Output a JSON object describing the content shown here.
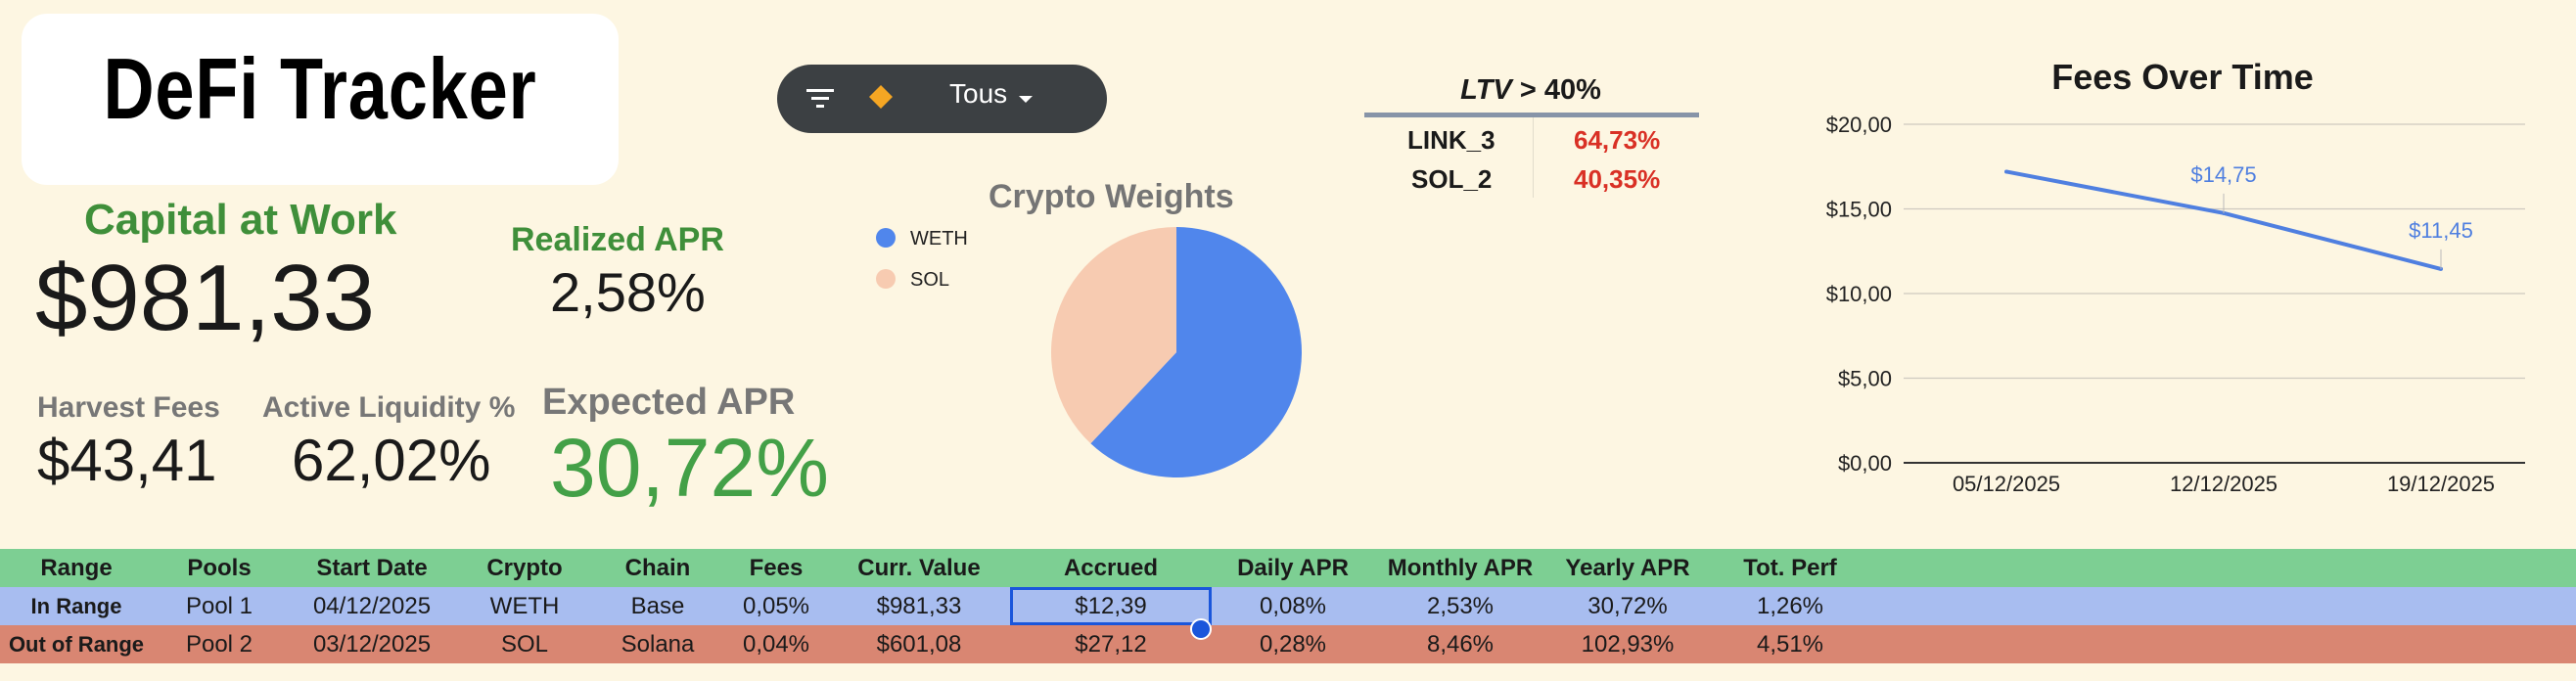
{
  "logo": {
    "text": "DeFi Tracker"
  },
  "kpis": {
    "capital_label": "Capital at Work",
    "capital_value": "$981,33",
    "realized_apr_label": "Realized APR",
    "realized_apr_value": "2,58%",
    "harvest_label": "Harvest Fees",
    "harvest_value": "$43,41",
    "active_liq_label": "Active Liquidity %",
    "active_liq_value": "62,02%",
    "expected_apr_label": "Expected APR",
    "expected_apr_value": "30,72%"
  },
  "toolbar": {
    "filter_icon": "filter-icon",
    "diamond_icon": "diamond-icon",
    "select_value": "Tous"
  },
  "ltv": {
    "header_italic": "LTV",
    "header_rest": " > 40%",
    "rows": [
      {
        "name": "LINK_3",
        "value": "64,73%"
      },
      {
        "name": "SOL_2",
        "value": "40,35%"
      }
    ],
    "value_color": "#d93025"
  },
  "chart_data": [
    {
      "type": "pie",
      "title": "Crypto Weights",
      "labels": [
        "WETH",
        "SOL"
      ],
      "values": [
        62,
        38
      ],
      "colors": [
        "#5086ec",
        "#f7cbb1"
      ],
      "legend": "left"
    },
    {
      "type": "line",
      "title": "Fees Over Time",
      "x": [
        "05/12/2025",
        "12/12/2025",
        "19/12/2025"
      ],
      "series": [
        {
          "values": [
            17.2,
            14.75,
            11.45
          ],
          "color": "#4f7fe0"
        }
      ],
      "data_labels": [
        "",
        "$14,75",
        "$11,45"
      ],
      "ylim": [
        0,
        20
      ],
      "yticks": [
        "$0,00",
        "$5,00",
        "$10,00",
        "$15,00",
        "$20,00"
      ],
      "grid": true
    }
  ],
  "table": {
    "headers": [
      "Range",
      "Pools",
      "Start Date",
      "Crypto",
      "Chain",
      "Fees",
      "Curr. Value",
      "Accrued",
      "Daily APR",
      "Monthly APR",
      "Yearly APR",
      "Tot. Perf"
    ],
    "rows": [
      [
        "In Range",
        "Pool 1",
        "04/12/2025",
        "WETH",
        "Base",
        "0,05%",
        "$981,33",
        "$12,39",
        "0,08%",
        "2,53%",
        "30,72%",
        "1,26%"
      ],
      [
        "Out of Range",
        "Pool 2",
        "03/12/2025",
        "SOL",
        "Solana",
        "0,04%",
        "$601,08",
        "$27,12",
        "0,28%",
        "8,46%",
        "102,93%",
        "4,51%"
      ]
    ],
    "colors": {
      "header": "#7dcf93",
      "in_range": "#a8bdf0",
      "out_range": "#d98672"
    }
  }
}
